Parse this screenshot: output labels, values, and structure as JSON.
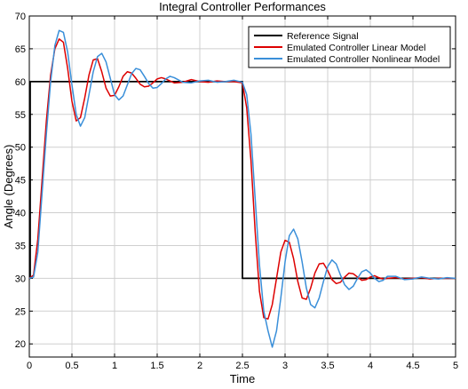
{
  "chart_data": {
    "type": "line",
    "title": "Integral Controller Performances",
    "xlabel": "Time",
    "ylabel": "Angle (Degrees)",
    "xlim": [
      0,
      5
    ],
    "ylim": [
      18,
      70
    ],
    "xticks": [
      "0",
      "0.5",
      "1",
      "1.5",
      "2",
      "2.5",
      "3",
      "3.5",
      "4",
      "4.5",
      "5"
    ],
    "yticks": [
      "20",
      "25",
      "30",
      "35",
      "40",
      "45",
      "50",
      "55",
      "60",
      "65",
      "70"
    ],
    "grid": true,
    "legend_position": "top-right",
    "series": [
      {
        "name": "Reference Signal",
        "color": "#000000",
        "x": [
          0,
          0.01,
          0.01,
          2.5,
          2.5,
          5
        ],
        "y": [
          30,
          30,
          60,
          60,
          30,
          30
        ]
      },
      {
        "name": "Emulated Controller Linear Model",
        "color": "#dd0000",
        "x": [
          0,
          0.05,
          0.1,
          0.15,
          0.2,
          0.25,
          0.3,
          0.35,
          0.4,
          0.45,
          0.5,
          0.55,
          0.6,
          0.65,
          0.7,
          0.75,
          0.8,
          0.85,
          0.9,
          0.95,
          1.0,
          1.05,
          1.1,
          1.15,
          1.2,
          1.25,
          1.3,
          1.35,
          1.4,
          1.45,
          1.5,
          1.55,
          1.6,
          1.7,
          1.8,
          1.9,
          2.0,
          2.1,
          2.2,
          2.3,
          2.4,
          2.5,
          2.55,
          2.6,
          2.65,
          2.7,
          2.75,
          2.8,
          2.85,
          2.9,
          2.95,
          3.0,
          3.05,
          3.1,
          3.15,
          3.2,
          3.25,
          3.3,
          3.35,
          3.4,
          3.45,
          3.5,
          3.55,
          3.6,
          3.65,
          3.7,
          3.75,
          3.8,
          3.85,
          3.9,
          3.95,
          4.0,
          4.05,
          4.1,
          4.15,
          4.2,
          4.3,
          4.4,
          4.5,
          4.6,
          4.7,
          4.8,
          4.9,
          5.0
        ],
        "y": [
          30,
          30.5,
          36,
          45,
          54,
          61,
          65,
          66.5,
          66,
          62,
          57,
          54,
          54.5,
          57.5,
          61,
          63.3,
          63.5,
          61.5,
          59,
          57.8,
          57.9,
          59.2,
          60.8,
          61.5,
          61.3,
          60.5,
          59.6,
          59.2,
          59.3,
          59.8,
          60.4,
          60.6,
          60.4,
          59.8,
          59.9,
          60.3,
          60.0,
          59.9,
          60.1,
          60.0,
          60.0,
          59.8,
          56,
          48,
          37,
          28,
          24,
          23.8,
          26,
          30,
          34,
          35.8,
          35.5,
          33,
          29.5,
          27,
          26.8,
          28.5,
          30.8,
          32.2,
          32.3,
          31.2,
          29.8,
          29.2,
          29.4,
          30.2,
          30.8,
          30.7,
          30.2,
          29.7,
          29.8,
          30.2,
          30.4,
          30.1,
          29.9,
          30.0,
          30.1,
          29.9,
          30.0,
          30.1,
          29.9,
          30.0,
          30.0,
          30.0
        ]
      },
      {
        "name": "Emulated Controller Nonlinear Model",
        "color": "#3a8fd9",
        "x": [
          0,
          0.05,
          0.1,
          0.15,
          0.2,
          0.25,
          0.3,
          0.35,
          0.4,
          0.45,
          0.5,
          0.55,
          0.6,
          0.65,
          0.7,
          0.75,
          0.8,
          0.85,
          0.9,
          0.95,
          1.0,
          1.05,
          1.1,
          1.15,
          1.2,
          1.25,
          1.3,
          1.35,
          1.4,
          1.45,
          1.5,
          1.55,
          1.6,
          1.65,
          1.7,
          1.8,
          1.9,
          2.0,
          2.1,
          2.2,
          2.3,
          2.4,
          2.5,
          2.55,
          2.6,
          2.65,
          2.7,
          2.75,
          2.8,
          2.85,
          2.9,
          2.95,
          3.0,
          3.05,
          3.1,
          3.15,
          3.2,
          3.25,
          3.3,
          3.35,
          3.4,
          3.45,
          3.5,
          3.55,
          3.6,
          3.65,
          3.7,
          3.75,
          3.8,
          3.85,
          3.9,
          3.95,
          4.0,
          4.05,
          4.1,
          4.15,
          4.2,
          4.3,
          4.4,
          4.5,
          4.6,
          4.7,
          4.8,
          4.9,
          5.0
        ],
        "y": [
          30,
          30.2,
          34,
          43,
          52,
          60,
          65.5,
          67.8,
          67.5,
          64.5,
          59.5,
          55,
          53.2,
          54.5,
          58,
          61.5,
          63.8,
          64.3,
          63,
          60.5,
          58,
          57.2,
          57.8,
          59.5,
          61.2,
          62,
          61.8,
          60.8,
          59.7,
          59.0,
          59.1,
          59.7,
          60.4,
          60.8,
          60.6,
          59.9,
          59.8,
          60.1,
          60.2,
          59.9,
          60.0,
          60.2,
          59.9,
          58,
          52,
          42,
          32,
          25,
          22,
          19.5,
          22,
          27,
          32.5,
          36.5,
          37.5,
          36,
          32.5,
          28.5,
          26,
          25.5,
          27,
          29.5,
          31.8,
          32.8,
          32.2,
          30.5,
          29,
          28.3,
          28.8,
          30,
          31,
          31.3,
          30.8,
          30,
          29.5,
          29.7,
          30.3,
          30.3,
          29.8,
          29.9,
          30.2,
          30.0,
          29.9,
          30.1,
          30.0
        ]
      }
    ]
  }
}
